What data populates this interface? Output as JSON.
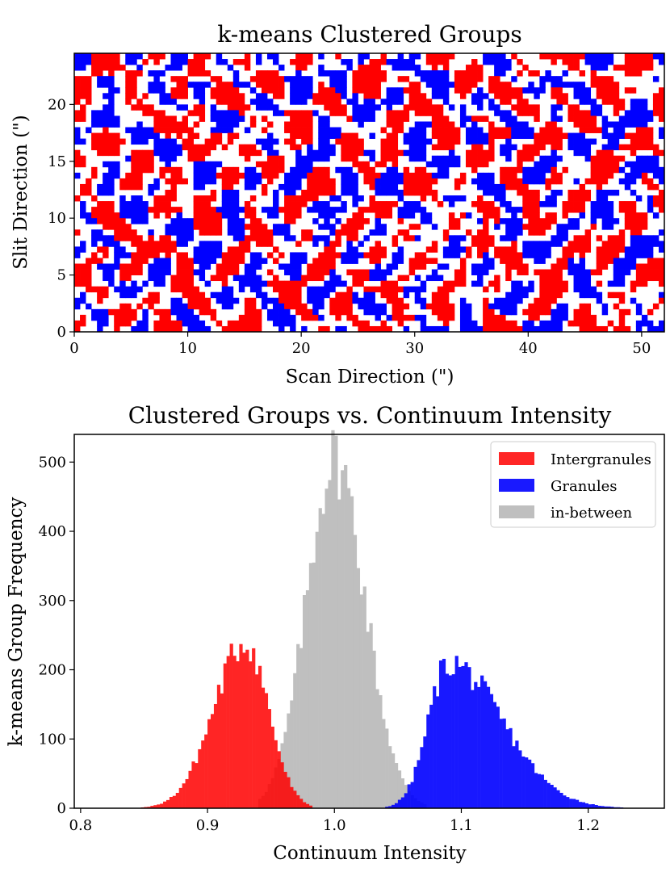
{
  "colors": {
    "intergranules": "#ff0000",
    "granules": "#0000ff",
    "in_between": "#b4b4b4",
    "background": "#ffffff"
  },
  "chart_data": [
    {
      "type": "heatmap",
      "title": "k-means Clustered Groups",
      "xlabel": "Scan Direction (\")",
      "ylabel": "Slit Direction (\")",
      "xlim": [
        0,
        52
      ],
      "ylim": [
        0,
        24.5
      ],
      "xticks": [
        0,
        10,
        20,
        30,
        40,
        50
      ],
      "yticks": [
        0,
        5,
        10,
        15,
        20
      ],
      "xtick_labels": [
        "0",
        "10",
        "20",
        "30",
        "40",
        "50"
      ],
      "ytick_labels": [
        "0",
        "5",
        "10",
        "15",
        "20"
      ],
      "grid": {
        "cols": 104,
        "rows": 49
      },
      "classes": [
        "in-between",
        "Intergranules",
        "Granules"
      ]
    },
    {
      "type": "bar",
      "title": "Clustered Groups vs. Continuum Intensity",
      "xlabel": "Continuum Intensity",
      "ylabel": "k-means Group Frequency",
      "xlim": [
        0.795,
        1.26
      ],
      "ylim": [
        0,
        540
      ],
      "xticks": [
        0.8,
        0.9,
        1.0,
        1.1,
        1.2
      ],
      "yticks": [
        0,
        100,
        200,
        300,
        400,
        500
      ],
      "xtick_labels": [
        "0.8",
        "0.9",
        "1.0",
        "1.1",
        "1.2"
      ],
      "ytick_labels": [
        "0",
        "100",
        "200",
        "300",
        "400",
        "500"
      ],
      "bin_width": 0.0025,
      "legend": {
        "position": "top-right"
      },
      "series": [
        {
          "name": "Intergranules",
          "color": "#ff0000",
          "opacity": 0.85,
          "range": [
            0.82,
            0.98
          ],
          "peak_x": 0.93,
          "peak_y": 240,
          "left_sigma": 0.025,
          "right_sigma": 0.018
        },
        {
          "name": "Granules",
          "color": "#0000ff",
          "opacity": 0.9,
          "range": [
            1.04,
            1.25
          ],
          "peak_x": 1.09,
          "peak_y": 210,
          "left_sigma": 0.016,
          "right_sigma": 0.042
        },
        {
          "name": "in-between",
          "color": "#b4b4b4",
          "opacity": 0.85,
          "range": [
            0.94,
            1.07
          ],
          "peak_x": 1.0,
          "peak_y": 505,
          "left_sigma": 0.022,
          "right_sigma": 0.024
        }
      ]
    }
  ]
}
